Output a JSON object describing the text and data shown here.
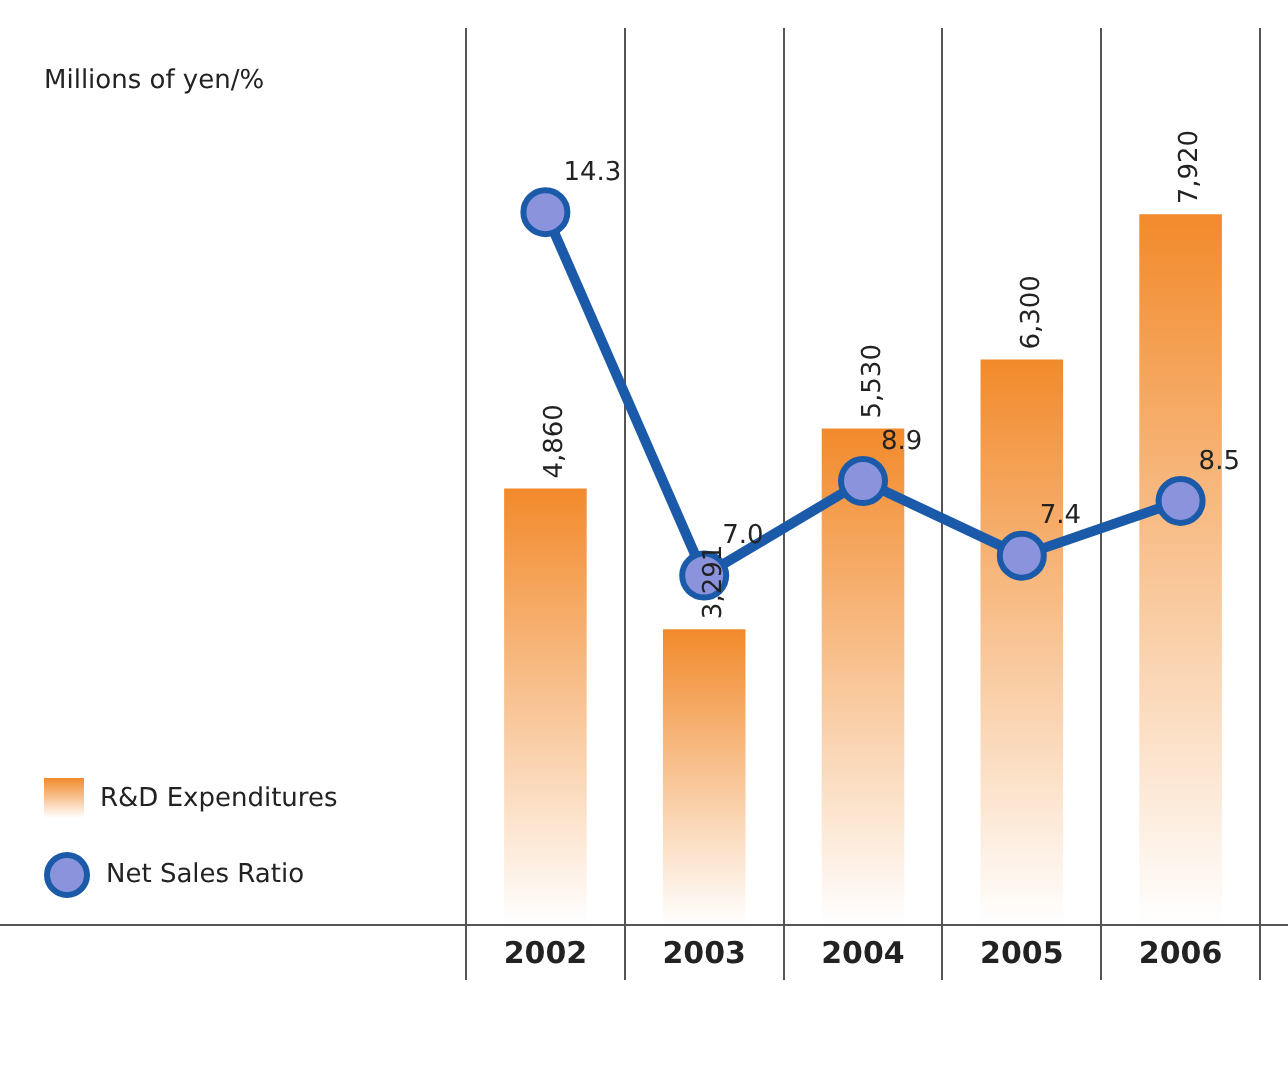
{
  "chart_data": {
    "type": "bar",
    "annotations": [
      "Millions of yen/%"
    ],
    "categories": [
      "2002",
      "2003",
      "2004",
      "2005",
      "2006"
    ],
    "series": [
      {
        "name": "R&D Expenditures",
        "color": "#f28a2b",
        "values": [
          4860,
          3291,
          5530,
          6300,
          7920
        ],
        "value_labels": [
          "4,860",
          "3,291",
          "5,530",
          "6,300",
          "7,920"
        ]
      },
      {
        "name": "Net Sales Ratio",
        "type": "line",
        "axis": "y2",
        "color": "#1a5aa8",
        "values": [
          14.3,
          7.0,
          8.9,
          7.4,
          8.5
        ],
        "value_labels": [
          "14.3",
          "7.0",
          "8.9",
          "7.4",
          "8.5"
        ]
      }
    ],
    "legend": "bottom left",
    "marker": "circle",
    "grid": "x"
  }
}
